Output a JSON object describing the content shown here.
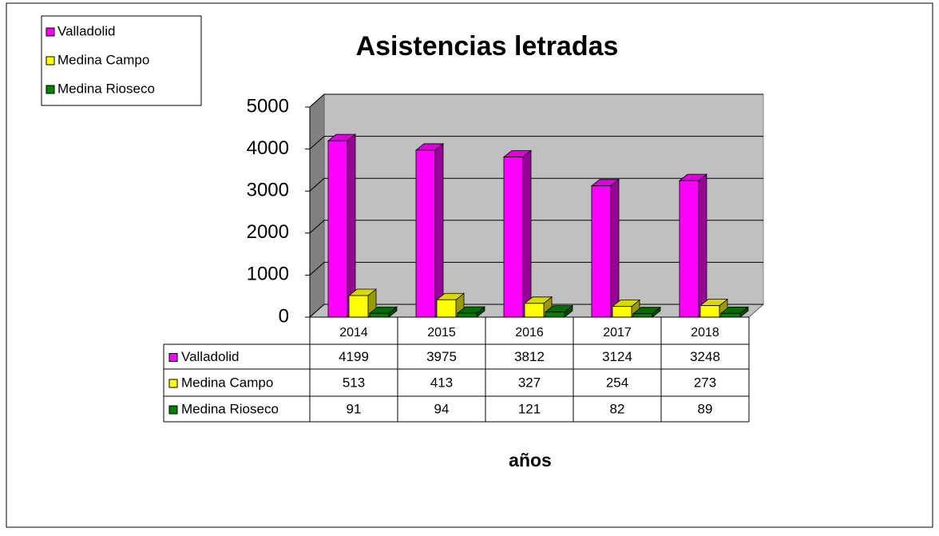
{
  "chart_data": {
    "type": "bar3d",
    "title": "Asistencias letradas",
    "x_label": "años",
    "categories": [
      "2014",
      "2015",
      "2016",
      "2017",
      "2018"
    ],
    "series": [
      {
        "name": "Valladolid",
        "color": "#ff00ff",
        "values": [
          4199,
          3975,
          3812,
          3124,
          3248
        ]
      },
      {
        "name": "Medina Campo",
        "color": "#ffff00",
        "values": [
          513,
          413,
          327,
          254,
          273
        ]
      },
      {
        "name": "Medina Rioseco",
        "color": "#008000",
        "values": [
          91,
          94,
          121,
          82,
          89
        ]
      }
    ],
    "ylim": [
      0,
      5000
    ],
    "yticks": [
      0,
      1000,
      2000,
      3000,
      4000,
      5000
    ],
    "grid": true,
    "legend": "top-left"
  }
}
